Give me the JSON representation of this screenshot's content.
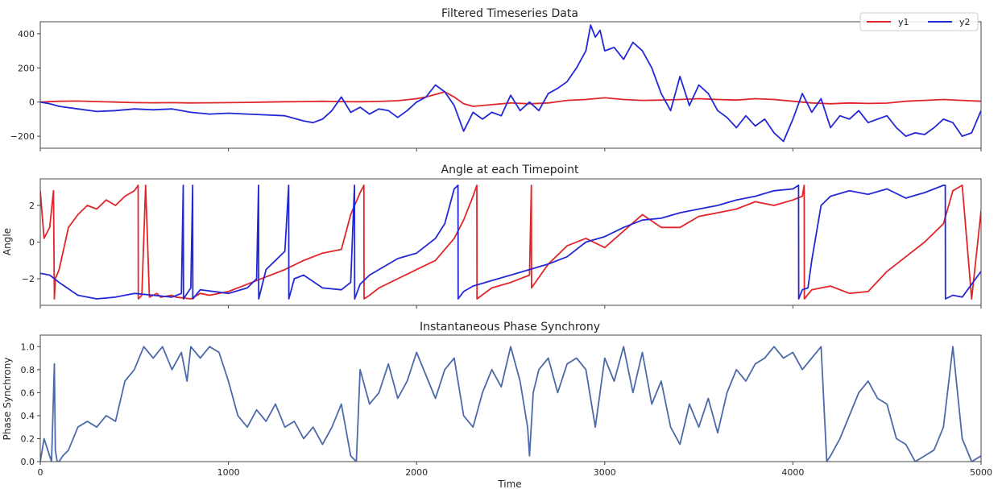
{
  "chart_data": [
    {
      "type": "line",
      "title": "Filtered Timeseries Data",
      "xlabel": "",
      "ylabel": "",
      "xlim": [
        0,
        5000
      ],
      "ylim": [
        -270,
        470
      ],
      "yticks": [
        -200,
        0,
        200,
        400
      ],
      "ytick_labels": [
        "−200",
        "0",
        "200",
        "400"
      ],
      "legend": "top-right",
      "series": [
        {
          "name": "y1",
          "color": "#e0262b",
          "x": [
            0,
            100,
            200,
            300,
            400,
            500,
            600,
            700,
            800,
            900,
            1000,
            1100,
            1200,
            1300,
            1400,
            1500,
            1600,
            1700,
            1800,
            1900,
            2000,
            2050,
            2100,
            2150,
            2200,
            2250,
            2300,
            2400,
            2500,
            2600,
            2700,
            2800,
            2900,
            3000,
            3100,
            3200,
            3300,
            3400,
            3500,
            3600,
            3700,
            3800,
            3900,
            4000,
            4100,
            4200,
            4300,
            4400,
            4500,
            4600,
            4700,
            4800,
            4900,
            5000
          ],
          "y": [
            0,
            5,
            6,
            3,
            0,
            -3,
            -4,
            -3,
            -5,
            -4,
            -3,
            -2,
            0,
            2,
            3,
            5,
            3,
            2,
            4,
            8,
            20,
            30,
            45,
            60,
            30,
            -10,
            -25,
            -15,
            -5,
            -10,
            -5,
            10,
            15,
            25,
            15,
            10,
            12,
            15,
            20,
            15,
            12,
            20,
            15,
            5,
            -5,
            -10,
            -5,
            -8,
            -6,
            5,
            10,
            15,
            10,
            5
          ]
        },
        {
          "name": "y2",
          "color": "#2428d4",
          "x": [
            0,
            50,
            100,
            200,
            300,
            400,
            500,
            600,
            700,
            800,
            900,
            1000,
            1100,
            1200,
            1300,
            1400,
            1450,
            1500,
            1550,
            1600,
            1650,
            1700,
            1750,
            1800,
            1850,
            1900,
            1950,
            2000,
            2050,
            2100,
            2150,
            2200,
            2250,
            2300,
            2350,
            2400,
            2450,
            2500,
            2550,
            2600,
            2650,
            2700,
            2750,
            2800,
            2850,
            2900,
            2925,
            2950,
            2975,
            3000,
            3050,
            3100,
            3150,
            3200,
            3250,
            3300,
            3350,
            3400,
            3450,
            3500,
            3550,
            3600,
            3650,
            3700,
            3750,
            3800,
            3850,
            3900,
            3950,
            4000,
            4050,
            4100,
            4150,
            4200,
            4250,
            4300,
            4350,
            4400,
            4450,
            4500,
            4550,
            4600,
            4650,
            4700,
            4750,
            4800,
            4850,
            4900,
            4950,
            5000
          ],
          "y": [
            0,
            -10,
            -25,
            -40,
            -55,
            -50,
            -40,
            -45,
            -40,
            -60,
            -70,
            -65,
            -70,
            -75,
            -80,
            -110,
            -120,
            -100,
            -50,
            30,
            -60,
            -30,
            -70,
            -40,
            -50,
            -90,
            -50,
            0,
            30,
            100,
            60,
            -20,
            -170,
            -60,
            -100,
            -60,
            -80,
            40,
            -50,
            0,
            -50,
            50,
            80,
            120,
            200,
            300,
            450,
            380,
            420,
            300,
            320,
            250,
            350,
            300,
            200,
            50,
            -50,
            150,
            -20,
            100,
            50,
            -50,
            -90,
            -150,
            -80,
            -140,
            -100,
            -180,
            -230,
            -100,
            50,
            -60,
            20,
            -150,
            -80,
            -100,
            -50,
            -120,
            -100,
            -80,
            -150,
            -200,
            -180,
            -190,
            -150,
            -100,
            -120,
            -200,
            -180,
            -50
          ]
        }
      ]
    },
    {
      "type": "line",
      "title": "Angle at each Timepoint",
      "xlabel": "",
      "ylabel": "Angle",
      "xlim": [
        0,
        5000
      ],
      "ylim": [
        -3.45,
        3.45
      ],
      "yticks": [
        -2,
        0,
        2
      ],
      "ytick_labels": [
        "−2",
        "0",
        "2"
      ],
      "series": [
        {
          "name": "y1",
          "color": "#e0262b",
          "x": [
            0,
            20,
            50,
            70,
            75,
            80,
            100,
            150,
            200,
            250,
            300,
            350,
            400,
            450,
            500,
            520,
            521,
            540,
            560,
            580,
            600,
            620,
            640,
            700,
            720,
            800,
            850,
            900,
            1000,
            1100,
            1200,
            1300,
            1400,
            1500,
            1600,
            1650,
            1700,
            1720,
            1721,
            1750,
            1800,
            1900,
            2000,
            2100,
            2200,
            2250,
            2300,
            2320,
            2321,
            2400,
            2500,
            2600,
            2610,
            2611,
            2700,
            2800,
            2900,
            3000,
            3100,
            3200,
            3300,
            3400,
            3500,
            3600,
            3700,
            3800,
            3900,
            4000,
            4050,
            4060,
            4061,
            4100,
            4200,
            4300,
            4400,
            4500,
            4600,
            4700,
            4800,
            4850,
            4900,
            4950,
            5000
          ],
          "y": [
            2.8,
            0.2,
            0.8,
            2.8,
            -3.1,
            -2.0,
            -1.5,
            0.8,
            1.5,
            2.0,
            1.8,
            2.3,
            2.0,
            2.5,
            2.8,
            3.1,
            -3.1,
            -2.9,
            3.1,
            -3.0,
            -2.9,
            -2.8,
            -3.0,
            -2.9,
            -3.0,
            -3.1,
            -2.8,
            -2.9,
            -2.7,
            -2.3,
            -1.9,
            -1.5,
            -1.0,
            -0.6,
            -0.4,
            1.5,
            2.7,
            3.1,
            -3.1,
            -2.9,
            -2.5,
            -2.0,
            -1.5,
            -1.0,
            0.2,
            1.2,
            2.5,
            3.1,
            -3.1,
            -2.5,
            -2.2,
            -1.8,
            3.1,
            -2.5,
            -1.2,
            -0.2,
            0.2,
            -0.3,
            0.6,
            1.5,
            0.8,
            0.8,
            1.4,
            1.6,
            1.8,
            2.2,
            2.0,
            2.3,
            2.5,
            3.1,
            -3.1,
            -2.6,
            -2.4,
            -2.8,
            -2.7,
            -1.6,
            -0.8,
            0.0,
            1.0,
            2.8,
            3.1,
            -3.1,
            1.7
          ]
        },
        {
          "name": "y2",
          "color": "#2428d4",
          "x": [
            0,
            50,
            100,
            200,
            300,
            400,
            500,
            600,
            700,
            750,
            760,
            761,
            800,
            810,
            811,
            850,
            1000,
            1100,
            1150,
            1160,
            1161,
            1200,
            1250,
            1300,
            1320,
            1321,
            1350,
            1400,
            1500,
            1600,
            1650,
            1670,
            1671,
            1700,
            1750,
            1800,
            1900,
            2000,
            2100,
            2150,
            2200,
            2220,
            2221,
            2250,
            2300,
            2400,
            2500,
            2600,
            2700,
            2800,
            2900,
            3000,
            3100,
            3200,
            3300,
            3400,
            3500,
            3600,
            3700,
            3800,
            3900,
            4000,
            4030,
            4031,
            4050,
            4080,
            4100,
            4150,
            4200,
            4300,
            4400,
            4500,
            4600,
            4700,
            4800,
            4810,
            4811,
            4850,
            4900,
            5000
          ],
          "y": [
            -1.7,
            -1.8,
            -2.2,
            -2.9,
            -3.1,
            -3.0,
            -2.8,
            -2.9,
            -3.0,
            -2.8,
            3.1,
            -3.1,
            -2.5,
            3.1,
            -3.1,
            -2.6,
            -2.8,
            -2.5,
            -2.0,
            3.1,
            -3.1,
            -1.5,
            -1.0,
            -0.5,
            3.1,
            -3.1,
            -2.0,
            -1.8,
            -2.5,
            -2.6,
            -2.2,
            3.1,
            -3.1,
            -2.3,
            -1.8,
            -1.5,
            -0.9,
            -0.6,
            0.2,
            1.0,
            2.9,
            3.1,
            -3.1,
            -2.7,
            -2.4,
            -2.1,
            -1.8,
            -1.5,
            -1.2,
            -0.8,
            0.0,
            0.3,
            0.8,
            1.2,
            1.3,
            1.6,
            1.8,
            2.0,
            2.3,
            2.5,
            2.8,
            2.9,
            3.1,
            -3.1,
            -2.6,
            -2.5,
            -1.0,
            2.0,
            2.5,
            2.8,
            2.6,
            2.9,
            2.4,
            2.7,
            3.1,
            3.1,
            -3.1,
            -2.9,
            -3.0,
            -1.6
          ]
        }
      ]
    },
    {
      "type": "line",
      "title": "Instantaneous Phase Synchrony",
      "xlabel": "Time",
      "ylabel": "Phase Synchrony",
      "xlim": [
        0,
        5000
      ],
      "ylim": [
        0.0,
        1.1
      ],
      "yticks": [
        0.0,
        0.2,
        0.4,
        0.6,
        0.8,
        1.0
      ],
      "ytick_labels": [
        "0.0",
        "0.2",
        "0.4",
        "0.6",
        "0.8",
        "1.0"
      ],
      "xticks": [
        0,
        1000,
        2000,
        3000,
        4000,
        5000
      ],
      "xtick_labels": [
        "0",
        "1000",
        "2000",
        "3000",
        "4000",
        "5000"
      ],
      "series": [
        {
          "name": "",
          "color": "#4c6aa8",
          "x": [
            0,
            20,
            40,
            60,
            75,
            80,
            90,
            100,
            120,
            150,
            200,
            250,
            300,
            350,
            400,
            450,
            500,
            550,
            600,
            650,
            700,
            750,
            780,
            800,
            850,
            900,
            950,
            1000,
            1050,
            1100,
            1150,
            1200,
            1250,
            1300,
            1350,
            1400,
            1450,
            1500,
            1550,
            1600,
            1650,
            1680,
            1700,
            1750,
            1800,
            1850,
            1900,
            1950,
            2000,
            2050,
            2100,
            2150,
            2200,
            2250,
            2300,
            2350,
            2400,
            2450,
            2500,
            2550,
            2590,
            2600,
            2620,
            2650,
            2700,
            2750,
            2800,
            2850,
            2900,
            2950,
            3000,
            3050,
            3100,
            3150,
            3200,
            3250,
            3300,
            3350,
            3400,
            3450,
            3500,
            3550,
            3600,
            3650,
            3700,
            3750,
            3800,
            3850,
            3900,
            3950,
            4000,
            4050,
            4100,
            4150,
            4180,
            4200,
            4250,
            4300,
            4350,
            4400,
            4450,
            4500,
            4550,
            4600,
            4650,
            4700,
            4750,
            4800,
            4850,
            4900,
            4950,
            5000
          ],
          "y": [
            0.0,
            0.2,
            0.1,
            0.0,
            0.85,
            0.1,
            0.0,
            0.0,
            0.05,
            0.1,
            0.3,
            0.35,
            0.3,
            0.4,
            0.35,
            0.7,
            0.8,
            1.0,
            0.9,
            1.0,
            0.8,
            0.95,
            0.7,
            1.0,
            0.9,
            1.0,
            0.95,
            0.7,
            0.4,
            0.3,
            0.45,
            0.35,
            0.5,
            0.3,
            0.35,
            0.2,
            0.3,
            0.15,
            0.3,
            0.5,
            0.05,
            0.0,
            0.8,
            0.5,
            0.6,
            0.85,
            0.55,
            0.7,
            0.95,
            0.75,
            0.55,
            0.8,
            0.9,
            0.4,
            0.3,
            0.6,
            0.8,
            0.65,
            1.0,
            0.7,
            0.3,
            0.05,
            0.6,
            0.8,
            0.9,
            0.6,
            0.85,
            0.9,
            0.8,
            0.3,
            0.9,
            0.7,
            1.0,
            0.6,
            0.95,
            0.5,
            0.7,
            0.3,
            0.15,
            0.5,
            0.3,
            0.55,
            0.25,
            0.6,
            0.8,
            0.7,
            0.85,
            0.9,
            1.0,
            0.9,
            0.95,
            0.8,
            0.9,
            1.0,
            0.0,
            0.05,
            0.2,
            0.4,
            0.6,
            0.7,
            0.55,
            0.5,
            0.2,
            0.15,
            0.0,
            0.05,
            0.1,
            0.3,
            1.0,
            0.2,
            0.0,
            0.05
          ]
        }
      ]
    }
  ]
}
